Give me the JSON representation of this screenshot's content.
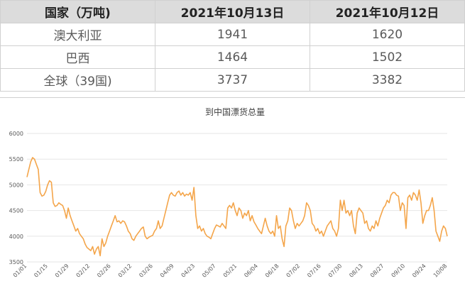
{
  "table": {
    "headers": [
      "国家（万吨)",
      "2021年10月13日",
      "2021年10月12日"
    ],
    "rows": [
      [
        "澳大利亚",
        "1941",
        "1620"
      ],
      [
        "巴西",
        "1464",
        "1502"
      ],
      [
        "全球（39国)",
        "3737",
        "3382"
      ]
    ]
  },
  "colors": {
    "line": "#f4a54a",
    "grid": "#e6e6e6",
    "header_bg": "#dcdcdc"
  },
  "chart_data": {
    "type": "line",
    "title": "到中国漂货总量",
    "xlabel": "",
    "ylabel": "",
    "ylim": [
      3500,
      6000
    ],
    "yticks": [
      3500,
      4000,
      4500,
      5000,
      5500,
      6000
    ],
    "grid": true,
    "legend": "none",
    "xticklabels": [
      "01/01",
      "01/15",
      "01/29",
      "02/12",
      "02/26",
      "03/12",
      "03/26",
      "04/09",
      "04/23",
      "05/07",
      "05/21",
      "06/04",
      "06/18",
      "07/02",
      "07/16",
      "07/30",
      "08/13",
      "08/27",
      "09/10",
      "09/24",
      "10/08"
    ],
    "series": [
      {
        "values": [
          5150,
          5300,
          5450,
          5530,
          5500,
          5400,
          5300,
          4850,
          4780,
          4800,
          4870,
          5000,
          5080,
          5050,
          4650,
          4580,
          4600,
          4650,
          4620,
          4600,
          4500,
          4350,
          4550,
          4400,
          4300,
          4200,
          4100,
          4150,
          4050,
          4000,
          3950,
          3850,
          3780,
          3750,
          3720,
          3800,
          3650,
          3750,
          3800,
          3620,
          3950,
          3800,
          3870,
          4000,
          4100,
          4200,
          4300,
          4400,
          4280,
          4300,
          4250,
          4300,
          4280,
          4200,
          4100,
          4050,
          3950,
          3920,
          4000,
          4050,
          4100,
          4150,
          4180,
          4000,
          3950,
          3980,
          4000,
          4020,
          4100,
          4150,
          4300,
          4150,
          4200,
          4350,
          4500,
          4650,
          4800,
          4850,
          4800,
          4780,
          4850,
          4880,
          4800,
          4850,
          4780,
          4820,
          4800,
          4850,
          4700,
          4950,
          4400,
          4150,
          4200,
          4100,
          4150,
          4050,
          4000,
          3980,
          3950,
          4050,
          4150,
          4220,
          4200,
          4180,
          4250,
          4200,
          4150,
          4550,
          4600,
          4550,
          4650,
          4500,
          4400,
          4550,
          4500,
          4350,
          4450,
          4400,
          4500,
          4300,
          4400,
          4280,
          4220,
          4150,
          4100,
          4050,
          4200,
          4350,
          4200,
          4100,
          4050,
          4100,
          4000,
          4400,
          4150,
          4200,
          3950,
          3800,
          4200,
          4300,
          4550,
          4500,
          4300,
          4150,
          4250,
          4200,
          4250,
          4300,
          4400,
          4650,
          4600,
          4500,
          4250,
          4200,
          4100,
          4150,
          4050,
          4100,
          4000,
          4100,
          4200,
          4250,
          4300,
          4150,
          4100,
          4000,
          4150,
          4700,
          4500,
          4700,
          4450,
          4500,
          4400,
          4500,
          4200,
          4050,
          4450,
          4550,
          4500,
          4450,
          4250,
          4300,
          4150,
          4100,
          4200,
          4150,
          4300,
          4200,
          4350,
          4450,
          4550,
          4600,
          4700,
          4650,
          4800,
          4850,
          4850,
          4800,
          4780,
          4500,
          4650,
          4600,
          4150,
          4750,
          4800,
          4700,
          4850,
          4800,
          4700,
          4900,
          4650,
          4250,
          4400,
          4500,
          4500,
          4600,
          4750,
          4500,
          4100,
          4000,
          3900,
          4100,
          4200,
          4150,
          4000
        ]
      }
    ]
  }
}
